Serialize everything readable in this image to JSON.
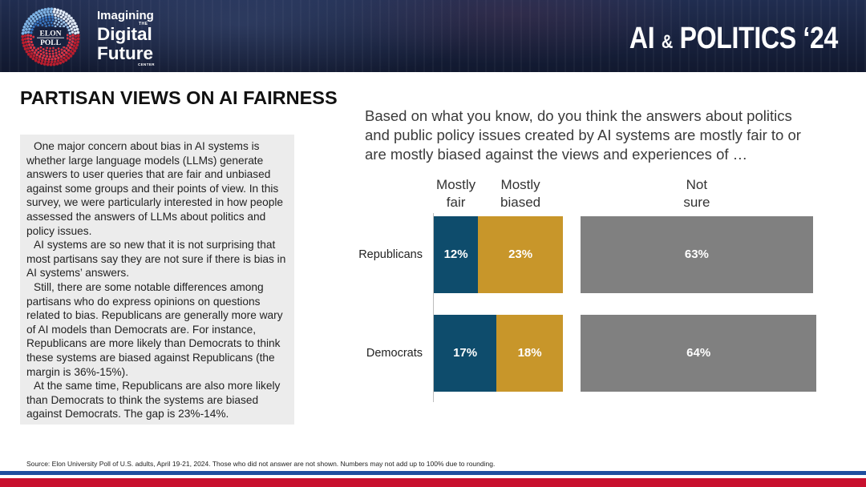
{
  "header": {
    "logo": {
      "top": "ELON",
      "bottom": "POLL"
    },
    "center_name": {
      "imagining": "Imagining",
      "the": "THE",
      "digital": "Digital",
      "future": "Future",
      "center": "CENTER"
    },
    "series_title": {
      "ai": "AI",
      "amp": "&",
      "politics": "POLITICS ‘24"
    }
  },
  "slide": {
    "title": "PARTISAN VIEWS ON AI FAIRNESS",
    "sidebar_paragraphs": [
      "One major concern about bias in AI systems is whether large language models (LLMs) generate answers to user queries that are fair and unbiased against some groups and their points of view. In this survey, we were particularly interested in how people assessed the answers of LLMs about politics and policy issues.",
      "AI systems are so new that it is not surprising that most partisans say they are not sure if there is bias in AI systems’ answers.",
      "Still, there are some notable differences among partisans who do express opinions on questions related to bias. Republicans are generally more wary of AI models than Democrats are. For instance, Republicans are more likely than Democrats to think these systems are biased against Republicans (the margin is 36%-15%).",
      "At the same time, Republicans are also more likely than Democrats to think the systems are biased against Democrats. The gap is 23%-14%."
    ],
    "source": "Source: Elon University Poll of U.S. adults, April 19-21, 2024. Those who did not answer are not shown. Numbers may not add up to 100% due to rounding."
  },
  "colors": {
    "header_bg": "#18223f",
    "sidebar_bg": "#ececec",
    "stripe_blue": "#1f4f9f",
    "stripe_red": "#c8102e",
    "logo_blue": "#3a78c4",
    "logo_red": "#dd3344"
  },
  "chart_data": {
    "type": "bar",
    "orientation": "horizontal",
    "stacked": true,
    "title": "Based on what you know, do you think the answers about politics and public policy issues created by AI systems are mostly fair to or are mostly biased against the views and experiences of …",
    "categories": [
      "Republicans",
      "Democrats"
    ],
    "series": [
      {
        "name": "Mostly fair",
        "values": [
          12,
          17
        ],
        "color": "#0e4c6c"
      },
      {
        "name": "Mostly biased",
        "values": [
          23,
          18
        ],
        "color": "#c8962a"
      },
      {
        "name": "Not sure",
        "values": [
          63,
          64
        ],
        "color": "#808080"
      }
    ],
    "unit": "%",
    "legend": "top",
    "grid": false
  }
}
